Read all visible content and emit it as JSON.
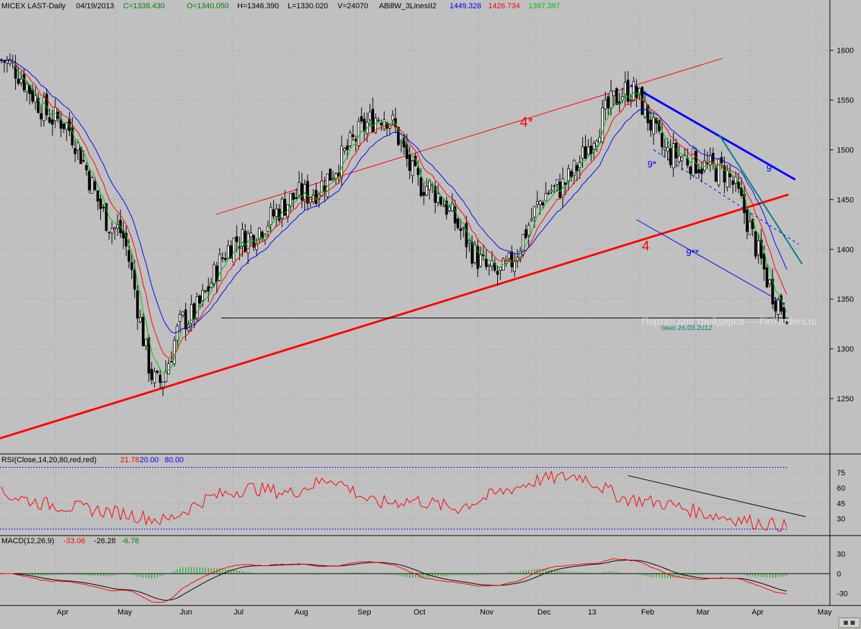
{
  "header": {
    "instrument": "MICEX LAST-Daily",
    "date": "04/19/2013",
    "close": "C=1338.430",
    "open": "O=1340.050",
    "high": "H=1346.390",
    "low": "L=1330.020",
    "volume": "V=24070",
    "indicator_name": "ABillW_3LinesII2",
    "blue_value": "1449.328",
    "red_value": "1426.734",
    "green_value": "1397.397"
  },
  "rsi": {
    "label": "RSI(Close,14,20,80,red,red)",
    "value": "21.78",
    "lower": "20.00",
    "upper": "80.00",
    "ticks": [
      "75",
      "60",
      "45",
      "30"
    ]
  },
  "macd": {
    "label": "MACD(12,26,9)",
    "v1": "-33.06",
    "v2": "-26.28",
    "v3": "-6.78",
    "ticks": [
      "30",
      "0",
      "-30"
    ]
  },
  "annotations": {
    "upper_channel": "4*",
    "lower_channel": "4",
    "blue_trend": "9",
    "dashed_trend": "9*",
    "lower_blue": "9**",
    "window_note": "окно 26.03.2012",
    "watermark": "Портал для трейдеров — FinTraders.ru"
  },
  "colors": {
    "background": "#c0c0c0",
    "candle": "#000000",
    "ma_blue": "#0000ff",
    "ma_red": "#ff0000",
    "ma_green": "#00c000",
    "teal": "#008080"
  },
  "chart_data": [
    {
      "type": "candlestick",
      "title": "MICEX LAST-Daily",
      "x_ticks": [
        "Apr",
        "May",
        "Jun",
        "Jul",
        "Aug",
        "Sep",
        "Oct",
        "Nov",
        "Dec",
        "13",
        "Feb",
        "Mar",
        "Apr",
        "May"
      ],
      "y_ticks": [
        1600,
        1550,
        1500,
        1450,
        1400,
        1350,
        1300,
        1250
      ],
      "ylim": [
        1195,
        1645
      ],
      "grid": true,
      "close_series": [
        {
          "month": "Mar 2012",
          "close": 1590
        },
        {
          "month": "Apr 2012",
          "close": 1530
        },
        {
          "month": "early May 2012",
          "close": 1420
        },
        {
          "month": "late May 2012",
          "close": 1265
        },
        {
          "month": "Jun 2012",
          "close": 1330
        },
        {
          "month": "Jul 2012",
          "close": 1410
        },
        {
          "month": "Aug 2012",
          "close": 1455
        },
        {
          "month": "mid Sep 2012",
          "close": 1535
        },
        {
          "month": "Oct 2012",
          "close": 1465
        },
        {
          "month": "mid Nov 2012",
          "close": 1375
        },
        {
          "month": "Dec 2012",
          "close": 1460
        },
        {
          "month": "late Jan 2013",
          "close": 1560
        },
        {
          "month": "Feb 2013",
          "close": 1495
        },
        {
          "month": "Mar 2013",
          "close": 1480
        },
        {
          "month": "Apr 19 2013",
          "close": 1338.43
        }
      ],
      "last_bar": {
        "open": 1340.05,
        "high": 1346.39,
        "low": 1330.02,
        "close": 1338.43,
        "volume": 24070
      },
      "moving_averages": [
        {
          "color": "blue",
          "last": 1449.328
        },
        {
          "color": "red",
          "last": 1426.734
        },
        {
          "color": "green",
          "last": 1397.397
        }
      ]
    },
    {
      "type": "line",
      "title": "RSI(Close,14,20,80,red,red)",
      "y_ticks": [
        75,
        60,
        45,
        30
      ],
      "levels": [
        20,
        80
      ],
      "last": 21.78,
      "approx_series": [
        55,
        45,
        40,
        35,
        28,
        50,
        60,
        55,
        70,
        45,
        48,
        40,
        55,
        68,
        72,
        50,
        45,
        35,
        28,
        22
      ]
    },
    {
      "type": "line",
      "title": "MACD(12,26,9)",
      "y_ticks": [
        30,
        0,
        -30
      ],
      "last": {
        "macd": -33.06,
        "signal": -26.28,
        "histogram": -6.78
      }
    }
  ]
}
